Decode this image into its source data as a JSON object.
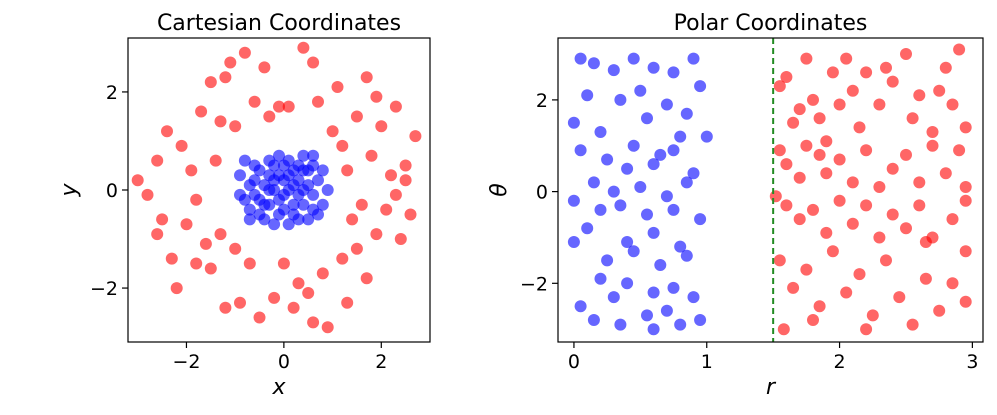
{
  "colors": {
    "blue": "#0000ff",
    "red": "#ff0000",
    "boundary": "#228b22"
  },
  "chart_data": [
    {
      "type": "scatter",
      "title": "Cartesian Coordinates",
      "xlabel": "x",
      "ylabel": "y",
      "xlim": [
        -3.2,
        3.0
      ],
      "ylim": [
        -3.1,
        3.1
      ],
      "xticks": [
        -2,
        0,
        2
      ],
      "yticks": [
        -2,
        0,
        2
      ],
      "tick_labels_x": [
        "−2",
        "0",
        "2"
      ],
      "tick_labels_y": [
        "−2",
        "0",
        "2"
      ],
      "series": [
        {
          "color": "#0000ff",
          "points": [
            [
              -0.7,
              0.1
            ],
            [
              -0.5,
              -0.2
            ],
            [
              -0.3,
              0.3
            ],
            [
              -0.1,
              -0.5
            ],
            [
              0.1,
              0.6
            ],
            [
              0.3,
              -0.1
            ],
            [
              0.5,
              0.4
            ],
            [
              0.6,
              -0.4
            ],
            [
              -0.6,
              0.5
            ],
            [
              -0.4,
              -0.6
            ],
            [
              -0.2,
              0.0
            ],
            [
              0.0,
              0.2
            ],
            [
              0.2,
              -0.3
            ],
            [
              0.4,
              0.0
            ],
            [
              0.7,
              0.2
            ],
            [
              -0.8,
              -0.2
            ],
            [
              -0.1,
              0.7
            ],
            [
              0.1,
              -0.7
            ],
            [
              0.3,
              0.5
            ],
            [
              -0.5,
              0.4
            ],
            [
              0.6,
              -0.1
            ],
            [
              -0.3,
              -0.3
            ],
            [
              0.0,
              -0.1
            ],
            [
              0.2,
              0.1
            ],
            [
              -0.7,
              -0.4
            ],
            [
              0.5,
              -0.6
            ],
            [
              -0.2,
              0.5
            ],
            [
              0.4,
              0.7
            ],
            [
              -0.9,
              0.3
            ],
            [
              0.8,
              -0.3
            ],
            [
              -0.4,
              0.1
            ],
            [
              0.1,
              0.0
            ],
            [
              0.3,
              -0.6
            ],
            [
              -0.6,
              -0.1
            ],
            [
              -0.1,
              0.3
            ],
            [
              0.6,
              0.5
            ],
            [
              0.0,
              -0.4
            ],
            [
              -0.3,
              0.6
            ],
            [
              0.2,
              0.4
            ],
            [
              -0.8,
              0.6
            ],
            [
              0.7,
              -0.5
            ],
            [
              -0.5,
              -0.5
            ],
            [
              0.4,
              -0.3
            ],
            [
              -0.2,
              -0.7
            ],
            [
              0.9,
              0.0
            ],
            [
              -0.6,
              0.2
            ],
            [
              0.1,
              0.3
            ],
            [
              0.3,
              0.2
            ],
            [
              -0.4,
              -0.3
            ],
            [
              0.5,
              0.1
            ],
            [
              -0.9,
              -0.1
            ],
            [
              0.0,
              0.5
            ],
            [
              -0.2,
              0.2
            ],
            [
              0.8,
              0.4
            ],
            [
              -0.7,
              -0.6
            ],
            [
              0.2,
              -0.5
            ],
            [
              0.4,
              0.4
            ],
            [
              -0.3,
              0.0
            ],
            [
              0.6,
              0.7
            ],
            [
              -0.1,
              -0.2
            ]
          ]
        },
        {
          "color": "#ff0000",
          "points": [
            [
              -3.0,
              0.2
            ],
            [
              -2.8,
              -0.1
            ],
            [
              -2.6,
              0.6
            ],
            [
              -2.5,
              -0.6
            ],
            [
              -2.4,
              1.2
            ],
            [
              -2.3,
              -1.4
            ],
            [
              -2.2,
              -2.0
            ],
            [
              -2.1,
              0.9
            ],
            [
              -2.0,
              -0.7
            ],
            [
              -1.9,
              0.4
            ],
            [
              -1.8,
              -0.2
            ],
            [
              -1.7,
              1.6
            ],
            [
              -1.6,
              -1.1
            ],
            [
              -1.5,
              2.2
            ],
            [
              -1.5,
              -1.6
            ],
            [
              -1.4,
              0.6
            ],
            [
              -1.3,
              1.4
            ],
            [
              -1.3,
              -0.9
            ],
            [
              -1.2,
              -2.4
            ],
            [
              -1.1,
              2.6
            ],
            [
              -1.0,
              1.3
            ],
            [
              -1.0,
              -1.2
            ],
            [
              -0.9,
              -2.3
            ],
            [
              -0.8,
              2.8
            ],
            [
              -0.7,
              -1.5
            ],
            [
              -0.6,
              1.8
            ],
            [
              -0.5,
              -2.6
            ],
            [
              -0.4,
              2.5
            ],
            [
              -0.3,
              1.5
            ],
            [
              -0.2,
              -2.2
            ],
            [
              0.1,
              1.7
            ],
            [
              0.2,
              -2.4
            ],
            [
              0.3,
              -1.9
            ],
            [
              0.4,
              2.9
            ],
            [
              0.5,
              -2.1
            ],
            [
              0.6,
              2.6
            ],
            [
              0.7,
              1.8
            ],
            [
              0.8,
              -1.7
            ],
            [
              0.9,
              -2.8
            ],
            [
              1.0,
              1.2
            ],
            [
              1.1,
              2.1
            ],
            [
              1.2,
              -1.4
            ],
            [
              1.3,
              -2.3
            ],
            [
              1.3,
              0.4
            ],
            [
              1.4,
              -0.6
            ],
            [
              1.5,
              1.5
            ],
            [
              1.5,
              -1.2
            ],
            [
              1.6,
              -0.3
            ],
            [
              1.7,
              2.3
            ],
            [
              1.7,
              -1.8
            ],
            [
              1.8,
              0.7
            ],
            [
              1.9,
              -0.9
            ],
            [
              2.0,
              1.3
            ],
            [
              2.1,
              -0.4
            ],
            [
              2.2,
              0.3
            ],
            [
              2.3,
              1.7
            ],
            [
              2.4,
              -1.0
            ],
            [
              2.5,
              0.2
            ],
            [
              2.6,
              -0.5
            ],
            [
              2.7,
              1.1
            ],
            [
              2.3,
              -0.1
            ],
            [
              1.9,
              1.9
            ],
            [
              -1.8,
              -1.5
            ],
            [
              -2.6,
              -0.9
            ],
            [
              0.0,
              -1.5
            ],
            [
              -0.1,
              1.7
            ],
            [
              1.2,
              0.9
            ],
            [
              -1.2,
              2.3
            ],
            [
              0.6,
              -2.7
            ],
            [
              2.5,
              0.5
            ]
          ]
        }
      ]
    },
    {
      "type": "scatter",
      "title": "Polar Coordinates",
      "xlabel": "r",
      "ylabel": "θ",
      "xlim": [
        -0.12,
        3.08
      ],
      "ylim": [
        -3.28,
        3.35
      ],
      "xticks": [
        0,
        1,
        2,
        3
      ],
      "yticks": [
        -2,
        0,
        2
      ],
      "tick_labels_x": [
        "0",
        "1",
        "2",
        "3"
      ],
      "tick_labels_y": [
        "−2",
        "0",
        "2"
      ],
      "boundary_r": 1.5,
      "series": [
        {
          "color": "#0000ff",
          "points": [
            [
              0.05,
              2.9
            ],
            [
              0.15,
              2.8
            ],
            [
              0.3,
              2.65
            ],
            [
              0.45,
              2.9
            ],
            [
              0.6,
              2.7
            ],
            [
              0.75,
              2.6
            ],
            [
              0.9,
              2.9
            ],
            [
              0.95,
              2.3
            ],
            [
              0.1,
              2.1
            ],
            [
              0.35,
              2.0
            ],
            [
              0.55,
              1.6
            ],
            [
              0.7,
              1.9
            ],
            [
              0.85,
              1.7
            ],
            [
              0.0,
              1.5
            ],
            [
              0.2,
              1.3
            ],
            [
              0.45,
              1.0
            ],
            [
              0.65,
              0.8
            ],
            [
              0.8,
              1.2
            ],
            [
              1.0,
              1.2
            ],
            [
              0.05,
              0.9
            ],
            [
              0.25,
              0.7
            ],
            [
              0.4,
              0.5
            ],
            [
              0.6,
              0.6
            ],
            [
              0.75,
              0.9
            ],
            [
              0.9,
              0.4
            ],
            [
              0.15,
              0.2
            ],
            [
              0.3,
              0.0
            ],
            [
              0.5,
              0.1
            ],
            [
              0.7,
              -0.1
            ],
            [
              0.85,
              0.2
            ],
            [
              0.0,
              -0.2
            ],
            [
              0.2,
              -0.4
            ],
            [
              0.35,
              -0.3
            ],
            [
              0.55,
              -0.5
            ],
            [
              0.75,
              -0.4
            ],
            [
              0.95,
              -0.6
            ],
            [
              0.1,
              -0.8
            ],
            [
              0.4,
              -1.1
            ],
            [
              0.6,
              -0.9
            ],
            [
              0.8,
              -1.2
            ],
            [
              0.0,
              -1.1
            ],
            [
              0.25,
              -1.5
            ],
            [
              0.45,
              -1.3
            ],
            [
              0.65,
              -1.6
            ],
            [
              0.85,
              -1.4
            ],
            [
              0.2,
              -1.9
            ],
            [
              0.4,
              -2.0
            ],
            [
              0.6,
              -2.2
            ],
            [
              0.75,
              -2.1
            ],
            [
              0.9,
              -2.3
            ],
            [
              0.05,
              -2.5
            ],
            [
              0.3,
              -2.3
            ],
            [
              0.55,
              -2.7
            ],
            [
              0.7,
              -2.6
            ],
            [
              0.95,
              -2.8
            ],
            [
              0.15,
              -2.8
            ],
            [
              0.35,
              -2.9
            ],
            [
              0.6,
              -3.0
            ],
            [
              0.8,
              -2.9
            ],
            [
              0.5,
              2.2
            ]
          ]
        },
        {
          "color": "#ff0000",
          "points": [
            [
              1.55,
              2.3
            ],
            [
              1.6,
              2.5
            ],
            [
              1.65,
              1.5
            ],
            [
              1.7,
              1.8
            ],
            [
              1.75,
              2.9
            ],
            [
              1.8,
              2.0
            ],
            [
              1.85,
              1.6
            ],
            [
              1.9,
              1.1
            ],
            [
              1.95,
              2.6
            ],
            [
              2.0,
              1.9
            ],
            [
              2.05,
              2.9
            ],
            [
              2.1,
              2.2
            ],
            [
              2.15,
              1.4
            ],
            [
              2.2,
              2.6
            ],
            [
              2.3,
              1.9
            ],
            [
              2.4,
              2.4
            ],
            [
              2.5,
              3.0
            ],
            [
              2.55,
              1.6
            ],
            [
              2.6,
              2.1
            ],
            [
              2.7,
              1.3
            ],
            [
              2.75,
              2.2
            ],
            [
              2.8,
              2.7
            ],
            [
              2.85,
              1.9
            ],
            [
              2.9,
              3.1
            ],
            [
              2.95,
              1.4
            ],
            [
              1.55,
              0.9
            ],
            [
              1.6,
              0.6
            ],
            [
              1.7,
              0.3
            ],
            [
              1.75,
              1.0
            ],
            [
              1.85,
              0.8
            ],
            [
              1.9,
              0.4
            ],
            [
              2.0,
              0.7
            ],
            [
              2.1,
              0.2
            ],
            [
              2.2,
              0.9
            ],
            [
              2.3,
              0.1
            ],
            [
              2.4,
              0.5
            ],
            [
              2.5,
              0.8
            ],
            [
              2.6,
              0.2
            ],
            [
              2.7,
              1.0
            ],
            [
              2.8,
              0.4
            ],
            [
              2.9,
              0.9
            ],
            [
              2.95,
              0.1
            ],
            [
              1.52,
              -0.1
            ],
            [
              1.6,
              -0.3
            ],
            [
              1.7,
              -0.6
            ],
            [
              1.8,
              -0.4
            ],
            [
              1.9,
              -0.9
            ],
            [
              2.0,
              -0.2
            ],
            [
              2.1,
              -0.7
            ],
            [
              2.2,
              -0.3
            ],
            [
              2.3,
              -1.0
            ],
            [
              2.4,
              -0.5
            ],
            [
              2.5,
              -0.8
            ],
            [
              2.6,
              -0.3
            ],
            [
              2.7,
              -1.0
            ],
            [
              2.85,
              -0.6
            ],
            [
              2.95,
              -0.2
            ],
            [
              1.55,
              -1.5
            ],
            [
              1.65,
              -2.1
            ],
            [
              1.75,
              -1.7
            ],
            [
              1.85,
              -2.5
            ],
            [
              1.95,
              -1.3
            ],
            [
              2.05,
              -2.2
            ],
            [
              2.15,
              -1.8
            ],
            [
              2.25,
              -2.7
            ],
            [
              2.35,
              -1.5
            ],
            [
              2.45,
              -2.3
            ],
            [
              2.55,
              -2.9
            ],
            [
              2.65,
              -1.9
            ],
            [
              2.75,
              -2.6
            ],
            [
              2.85,
              -2.0
            ],
            [
              2.95,
              -2.4
            ],
            [
              1.58,
              -3.0
            ],
            [
              1.8,
              -2.8
            ],
            [
              2.2,
              -3.0
            ],
            [
              2.65,
              -1.1
            ],
            [
              2.95,
              -1.3
            ],
            [
              2.35,
              2.7
            ]
          ]
        }
      ]
    }
  ]
}
